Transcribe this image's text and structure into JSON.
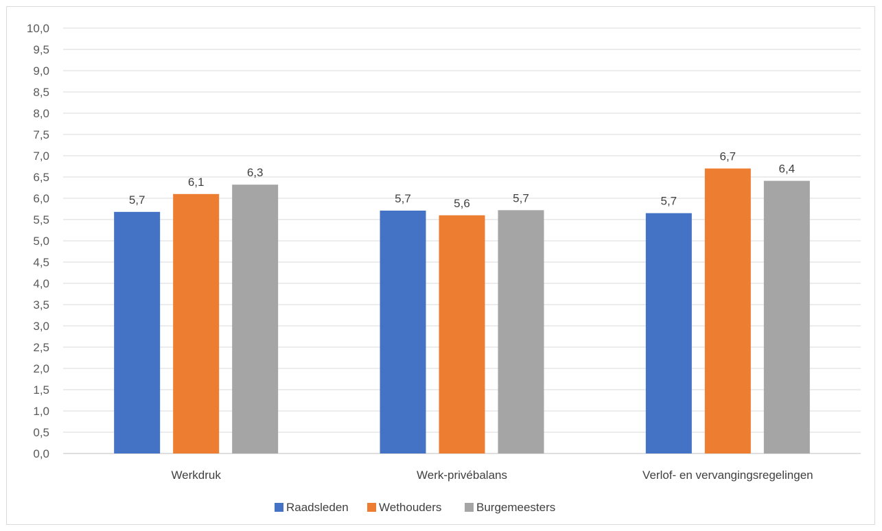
{
  "chart_data": {
    "type": "bar",
    "title": "",
    "xlabel": "",
    "ylabel": "",
    "ylim": [
      0,
      10
    ],
    "y_tick_step": 0.5,
    "grid": true,
    "legend_position": "bottom",
    "categories": [
      "Werkdruk",
      "Werk-privébalans",
      "Verlof- en vervangingsregelingen"
    ],
    "series": [
      {
        "name": "Raadsleden",
        "color": "#4472c4",
        "values": [
          5.68,
          5.71,
          5.65
        ],
        "labels": [
          "5,7",
          "5,7",
          "5,7"
        ]
      },
      {
        "name": "Wethouders",
        "color": "#ed7d31",
        "values": [
          6.1,
          5.6,
          6.7
        ],
        "labels": [
          "6,1",
          "5,6",
          "6,7"
        ]
      },
      {
        "name": "Burgemeesters",
        "color": "#a5a5a5",
        "values": [
          6.32,
          5.72,
          6.41
        ],
        "labels": [
          "6,3",
          "5,7",
          "6,4"
        ]
      }
    ]
  }
}
